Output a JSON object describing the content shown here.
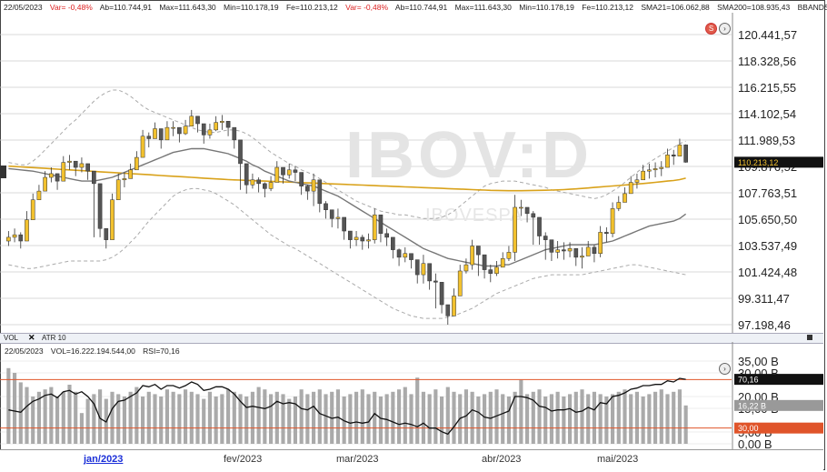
{
  "info_bar": {
    "date": "22/05/2023",
    "var1": "Var= -0,48%",
    "ab1": "Ab=110.744,91",
    "max1": "Max=111.643,30",
    "min1": "Min=110.178,19",
    "fe1": "Fe=110.213,12",
    "var2": "Var= -0,48%",
    "ab2": "Ab=110.744,91",
    "max2": "Max=111.643,30",
    "min2": "Min=110.178,19",
    "fe2": "Fe=110.213,12",
    "sma21": "SMA21=106.062,88",
    "sma200": "SMA200=108.935,43",
    "bbands": "BBANDS ACIM"
  },
  "watermark": {
    "ticker": "IBOV:D",
    "name": "IBOVESPA"
  },
  "buttons": {
    "s_label": "S",
    "next_label": "›",
    "vol_btn_label": "›"
  },
  "price_badge": "110.213,12",
  "colors": {
    "up": "#f2c12e",
    "down": "#555555",
    "sma200": "#d9a21b",
    "sma21": "#777777",
    "bands": "#aaaaaa",
    "rsi_line": "#111111",
    "ob": "#e0542a",
    "vol_bar": "#aaaaaa"
  },
  "lower_panel": {
    "tab1": "VOL",
    "tab_close": "✕",
    "tab2": "ATR 10",
    "date": "22/05/2023",
    "vol_text": "VOL=16.222.194.544,00",
    "rsi_text": "RSI=70,16",
    "rsi_badge": "70,16",
    "vol_badge": "16,22 B",
    "level_badge": "30,00"
  },
  "x_labels": [
    "jan/2023",
    "fev/2023",
    "mar/2023",
    "abr/2023",
    "mai/2023"
  ],
  "chart_data": [
    {
      "type": "candlestick",
      "title": "IBOV:D",
      "ylim": [
        97198.46,
        120441.57
      ],
      "y_ticks": [
        "120.441,57",
        "118.328,56",
        "116.215,55",
        "114.102,54",
        "111.989,53",
        "109.876,52",
        "107.763,51",
        "105.650,50",
        "103.537,49",
        "101.424,48",
        "99.311,47",
        "97.198,46"
      ],
      "y_tick_values": [
        120441.57,
        118328.56,
        116215.55,
        114102.54,
        111989.53,
        109876.52,
        107763.51,
        105650.5,
        103537.49,
        101424.48,
        99311.47,
        97198.46
      ],
      "closes": [
        104200,
        104400,
        103900,
        105600,
        107200,
        107900,
        109000,
        109300,
        108700,
        110200,
        110300,
        109800,
        110100,
        109500,
        108500,
        104900,
        104000,
        107200,
        108800,
        108900,
        109600,
        110600,
        112300,
        112100,
        112900,
        112000,
        113000,
        113000,
        112500,
        113100,
        113900,
        113300,
        112400,
        112800,
        113400,
        113500,
        113000,
        112000,
        110100,
        108400,
        108800,
        108500,
        108100,
        108600,
        109800,
        109200,
        109600,
        109400,
        108300,
        107900,
        108800,
        106900,
        106400,
        105700,
        105800,
        104700,
        104000,
        104200,
        103900,
        104000,
        106000,
        104500,
        104200,
        103200,
        102600,
        102900,
        102400,
        101200,
        102100,
        100700,
        100600,
        98800,
        97900,
        99500,
        101500,
        102000,
        103500,
        102800,
        101600,
        101300,
        101800,
        102500,
        103000,
        106600,
        106600,
        106100,
        105800,
        104300,
        104000,
        103000,
        103200,
        103100,
        103300,
        102600,
        102700,
        103400,
        102900,
        104600,
        104500,
        106500,
        107000,
        107700,
        108600,
        108800,
        109500,
        109600,
        109700,
        109800,
        110800,
        110700,
        111600,
        110213.12
      ],
      "highs": [
        104700,
        104900,
        104600,
        106300,
        107700,
        108400,
        109500,
        109800,
        109300,
        110700,
        110800,
        110300,
        110600,
        110000,
        109000,
        105600,
        104700,
        107700,
        109300,
        109400,
        110100,
        111100,
        112800,
        112600,
        113400,
        112700,
        113500,
        113500,
        113000,
        113600,
        114400,
        113800,
        112900,
        113300,
        113900,
        114000,
        113500,
        112500,
        110800,
        108900,
        109300,
        109000,
        108600,
        109100,
        110300,
        109700,
        110100,
        109900,
        108800,
        108400,
        109300,
        107600,
        107100,
        106400,
        106500,
        105400,
        104700,
        104700,
        104400,
        104500,
        106500,
        105200,
        104900,
        103900,
        103300,
        103400,
        102900,
        101900,
        102800,
        101500,
        101300,
        99500,
        98600,
        100100,
        102000,
        102500,
        104000,
        103300,
        102300,
        102000,
        102300,
        103000,
        103500,
        107600,
        107200,
        106600,
        106300,
        104900,
        104600,
        103700,
        103900,
        103800,
        103800,
        103300,
        103400,
        103900,
        103600,
        105100,
        105000,
        107000,
        107500,
        108200,
        109100,
        109300,
        110000,
        110100,
        110200,
        110300,
        111300,
        111200,
        112100,
        111643.3
      ],
      "lows": [
        103500,
        103800,
        103300,
        104900,
        106500,
        107200,
        108300,
        108600,
        108000,
        109500,
        109600,
        109100,
        109400,
        108800,
        104200,
        104200,
        103300,
        106500,
        108100,
        108200,
        108900,
        109900,
        111600,
        111400,
        112200,
        111300,
        112300,
        112300,
        111800,
        112400,
        113200,
        112600,
        111700,
        112100,
        112700,
        112800,
        112300,
        111300,
        108000,
        107700,
        108100,
        107800,
        107400,
        107900,
        109100,
        108500,
        108900,
        108700,
        107600,
        107200,
        106700,
        106200,
        105700,
        105000,
        104900,
        104000,
        103300,
        103500,
        103200,
        103300,
        103700,
        103800,
        103500,
        102500,
        101900,
        102200,
        101700,
        100500,
        100500,
        100000,
        98500,
        98100,
        97200,
        98800,
        100800,
        101300,
        101600,
        101100,
        100900,
        100600,
        101100,
        101800,
        102300,
        102300,
        105900,
        105400,
        103600,
        103600,
        102400,
        102300,
        102500,
        102400,
        102600,
        101900,
        101700,
        102700,
        102200,
        102600,
        103800,
        104200,
        106300,
        107000,
        107900,
        108100,
        108800,
        108900,
        109000,
        109100,
        110100,
        110000,
        110900,
        110178.19
      ],
      "sma21": [
        109700,
        109650,
        109600,
        109550,
        109500,
        109400,
        109300,
        109200,
        109100,
        109000,
        108900,
        108800,
        108700,
        108700,
        108700,
        108800,
        108900,
        109000,
        109200,
        109400,
        109600,
        109800,
        110000,
        110200,
        110400,
        110600,
        110800,
        111000,
        111100,
        111200,
        111300,
        111300,
        111300,
        111200,
        111100,
        111000,
        110900,
        110700,
        110500,
        110300,
        110000,
        109800,
        109500,
        109300,
        109100,
        108900,
        108700,
        108600,
        108500,
        108400,
        108300,
        108100,
        107900,
        107700,
        107500,
        107200,
        106900,
        106600,
        106300,
        106000,
        105700,
        105400,
        105100,
        104800,
        104500,
        104200,
        103900,
        103600,
        103300,
        103100,
        102900,
        102700,
        102500,
        102400,
        102300,
        102200,
        102100,
        102000,
        101900,
        101900,
        101900,
        102000,
        102000,
        102200,
        102400,
        102600,
        102800,
        103000,
        103200,
        103300,
        103400,
        103500,
        103600,
        103600,
        103600,
        103600,
        103600,
        103700,
        103800,
        103900,
        104100,
        104300,
        104500,
        104700,
        104900,
        105100,
        105200,
        105300,
        105400,
        105500,
        105700,
        106062.88
      ],
      "sma200": [
        109900,
        109870,
        109840,
        109810,
        109780,
        109750,
        109720,
        109690,
        109660,
        109630,
        109600,
        109570,
        109540,
        109510,
        109480,
        109450,
        109420,
        109390,
        109360,
        109330,
        109300,
        109270,
        109240,
        109210,
        109180,
        109150,
        109120,
        109090,
        109060,
        109030,
        109000,
        108970,
        108940,
        108910,
        108880,
        108850,
        108820,
        108800,
        108780,
        108760,
        108740,
        108720,
        108700,
        108680,
        108660,
        108640,
        108620,
        108600,
        108580,
        108560,
        108540,
        108520,
        108500,
        108480,
        108460,
        108440,
        108420,
        108400,
        108380,
        108360,
        108340,
        108320,
        108300,
        108280,
        108260,
        108240,
        108220,
        108200,
        108180,
        108160,
        108140,
        108120,
        108100,
        108080,
        108060,
        108040,
        108020,
        108000,
        107980,
        107960,
        107950,
        107940,
        107930,
        107930,
        107930,
        107940,
        107950,
        107960,
        107970,
        107980,
        108000,
        108020,
        108050,
        108080,
        108110,
        108150,
        108190,
        108230,
        108270,
        108310,
        108350,
        108390,
        108430,
        108470,
        108510,
        108550,
        108600,
        108650,
        108700,
        108750,
        108820,
        108935.43
      ],
      "boll_upper": [
        110200,
        110100,
        110000,
        110000,
        110300,
        110700,
        111200,
        111700,
        112200,
        112700,
        113200,
        113600,
        114100,
        114600,
        115100,
        115500,
        115800,
        116000,
        116000,
        115800,
        115500,
        115100,
        114700,
        114400,
        114200,
        114000,
        113800,
        113600,
        113400,
        113200,
        113000,
        112800,
        112700,
        112600,
        112600,
        112700,
        112800,
        112800,
        112700,
        112500,
        112200,
        111800,
        111400,
        111000,
        110700,
        110400,
        110100,
        109900,
        109600,
        109400,
        109200,
        108900,
        108600,
        108300,
        108000,
        107700,
        107400,
        107100,
        106900,
        106700,
        106500,
        106300,
        106200,
        106100,
        106000,
        106000,
        105900,
        105800,
        105700,
        105700,
        105700,
        105800,
        106000,
        106300,
        106700,
        107100,
        107500,
        107900,
        108300,
        108500,
        108600,
        108700,
        108700,
        108700,
        108600,
        108500,
        108400,
        108300,
        108200,
        108000,
        107900,
        107800,
        107700,
        107600,
        107500,
        107400,
        107300,
        107400,
        107600,
        107900,
        108200,
        108600,
        109000,
        109400,
        109800,
        110200,
        110500,
        110800,
        111100,
        111400,
        111700,
        111900
      ],
      "boll_lower": [
        102000,
        101900,
        101800,
        101700,
        101700,
        101800,
        101900,
        102000,
        102100,
        102200,
        102300,
        102300,
        102300,
        102300,
        102300,
        102300,
        102400,
        102600,
        102900,
        103300,
        103800,
        104300,
        104900,
        105500,
        106000,
        106500,
        107000,
        107500,
        107800,
        108000,
        108100,
        108100,
        108000,
        107900,
        107700,
        107400,
        107100,
        106800,
        106400,
        106000,
        105600,
        105200,
        104800,
        104400,
        104100,
        103800,
        103500,
        103300,
        103000,
        102700,
        102400,
        102100,
        101800,
        101500,
        101200,
        100900,
        100600,
        100300,
        100000,
        99700,
        99400,
        99100,
        98800,
        98500,
        98300,
        98100,
        97900,
        97800,
        97700,
        97700,
        97700,
        97700,
        97800,
        97900,
        98100,
        98300,
        98500,
        98800,
        99100,
        99400,
        99700,
        99900,
        100100,
        100300,
        100500,
        100700,
        100900,
        101000,
        101100,
        101200,
        101200,
        101200,
        101200,
        101200,
        101200,
        101300,
        101400,
        101500,
        101600,
        101700,
        101800,
        101900,
        102000,
        102000,
        101900,
        101800,
        101700,
        101600,
        101500,
        101400,
        101300,
        101200
      ]
    },
    {
      "type": "bar",
      "title": "VOL",
      "ylim": [
        0,
        35
      ],
      "y_ticks": [
        "35,00 B",
        "30,00 B",
        "20,00 B",
        "15,00 B",
        "5,00 B",
        "0,00 B"
      ],
      "y_tick_values": [
        35,
        30,
        20,
        15,
        5,
        0
      ],
      "volumes": [
        32,
        30,
        26,
        24,
        20,
        22,
        23,
        24,
        20,
        22,
        25,
        22,
        13,
        19,
        21,
        23,
        19,
        22,
        21,
        20,
        22,
        24,
        20,
        22,
        21,
        20,
        23,
        22,
        21,
        23,
        22,
        21,
        19,
        22,
        20,
        21,
        23,
        22,
        21,
        20,
        22,
        24,
        23,
        21,
        22,
        21,
        19,
        20,
        23,
        21,
        22,
        23,
        21,
        22,
        23,
        20,
        21,
        22,
        23,
        21,
        22,
        20,
        21,
        22,
        23,
        24,
        21,
        28,
        22,
        21,
        23,
        20,
        24,
        22,
        21,
        23,
        22,
        20,
        21,
        22,
        23,
        21,
        20,
        22,
        27,
        21,
        22,
        23,
        20,
        21,
        22,
        20,
        21,
        22,
        23,
        21,
        22,
        21,
        20,
        21,
        22,
        23,
        21,
        22,
        20,
        21,
        22,
        23,
        21,
        22,
        23,
        16.22
      ],
      "rsi": [
        45,
        44,
        43,
        48,
        52,
        54,
        57,
        58,
        55,
        60,
        61,
        58,
        60,
        56,
        50,
        38,
        35,
        46,
        52,
        53,
        56,
        59,
        65,
        64,
        66,
        62,
        65,
        65,
        63,
        65,
        68,
        66,
        61,
        62,
        64,
        64,
        62,
        58,
        52,
        47,
        48,
        47,
        46,
        48,
        52,
        50,
        51,
        50,
        46,
        45,
        48,
        42,
        40,
        38,
        39,
        36,
        34,
        35,
        34,
        35,
        42,
        38,
        37,
        35,
        33,
        34,
        33,
        31,
        34,
        30,
        30,
        27,
        25,
        31,
        38,
        40,
        45,
        43,
        39,
        38,
        40,
        42,
        44,
        56,
        56,
        55,
        53,
        48,
        47,
        44,
        45,
        45,
        46,
        43,
        44,
        47,
        45,
        51,
        50,
        56,
        57,
        59,
        62,
        63,
        65,
        65,
        66,
        66,
        69,
        68,
        71,
        70.16
      ],
      "rsi_levels": [
        70,
        30
      ]
    }
  ]
}
